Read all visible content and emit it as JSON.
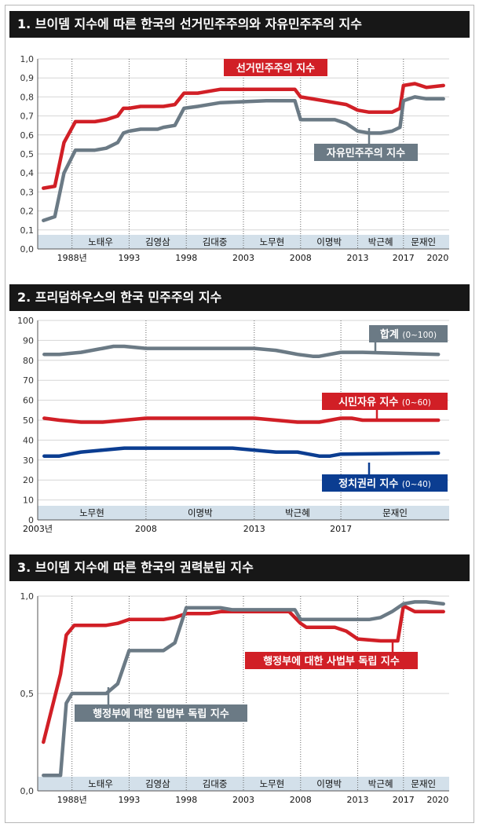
{
  "colors": {
    "red": "#d11f26",
    "gray": "#6b7a85",
    "blue": "#0b3d91",
    "band": "#d3e0ea",
    "title_bg": "#171717"
  },
  "chart_data": [
    {
      "type": "line",
      "title": "1. 브이뎀 지수에 따른 한국의 선거민주주의와 자유민주주의 지수",
      "ylim": [
        0,
        1.0
      ],
      "y_ticks": [
        "0,0",
        "0,1",
        "0,2",
        "0,3",
        "0,4",
        "0,5",
        "0,6",
        "0,7",
        "0,8",
        "0,9",
        "1,0"
      ],
      "x_range": [
        1985,
        2021
      ],
      "x_ticks": [
        {
          "label": "1988년",
          "year": 1988
        },
        {
          "label": "1993",
          "year": 1993
        },
        {
          "label": "1998",
          "year": 1998
        },
        {
          "label": "2003",
          "year": 2003
        },
        {
          "label": "2008",
          "year": 2008
        },
        {
          "label": "2013",
          "year": 2013
        },
        {
          "label": "2017",
          "year": 2017
        },
        {
          "label": "2020",
          "year": 2020
        }
      ],
      "eras": [
        {
          "name": "노태우",
          "start": 1988,
          "end": 1993
        },
        {
          "name": "김영삼",
          "start": 1993,
          "end": 1998
        },
        {
          "name": "김대중",
          "start": 1998,
          "end": 2003
        },
        {
          "name": "노무현",
          "start": 2003,
          "end": 2008
        },
        {
          "name": "이명박",
          "start": 2008,
          "end": 2013
        },
        {
          "name": "박근혜",
          "start": 2013,
          "end": 2017
        },
        {
          "name": "문재인",
          "start": 2017,
          "end": 2020.5
        }
      ],
      "series": [
        {
          "name": "선거민주주의 지수",
          "color": "red",
          "x": [
            1985.5,
            1986.5,
            1987.3,
            1988.3,
            1990,
            1991,
            1992,
            1992.5,
            1993,
            1994,
            1995.5,
            1996,
            1997,
            1997.8,
            1999,
            2001,
            2005,
            2007.5,
            2008,
            2010,
            2011,
            2012,
            2013,
            2014,
            2015,
            2016,
            2016.7,
            2017,
            2018,
            2019,
            2020.5
          ],
          "values": [
            0.32,
            0.33,
            0.56,
            0.67,
            0.67,
            0.68,
            0.7,
            0.74,
            0.74,
            0.75,
            0.75,
            0.75,
            0.76,
            0.82,
            0.82,
            0.84,
            0.84,
            0.84,
            0.8,
            0.78,
            0.77,
            0.76,
            0.73,
            0.72,
            0.72,
            0.72,
            0.74,
            0.86,
            0.87,
            0.85,
            0.86
          ]
        },
        {
          "name": "자유민주주의 지수",
          "color": "gray",
          "x": [
            1985.5,
            1986.5,
            1987.3,
            1988.3,
            1990,
            1991,
            1992,
            1992.5,
            1993,
            1994,
            1995.5,
            1996,
            1997,
            1997.8,
            1999,
            2001,
            2005,
            2007.5,
            2008,
            2010,
            2011,
            2012,
            2013,
            2014,
            2015,
            2016,
            2016.7,
            2017,
            2018,
            2019,
            2020.5
          ],
          "values": [
            0.15,
            0.17,
            0.4,
            0.52,
            0.52,
            0.53,
            0.56,
            0.61,
            0.62,
            0.63,
            0.63,
            0.64,
            0.65,
            0.74,
            0.75,
            0.77,
            0.78,
            0.78,
            0.68,
            0.68,
            0.68,
            0.66,
            0.62,
            0.61,
            0.61,
            0.62,
            0.64,
            0.78,
            0.8,
            0.79,
            0.79
          ]
        }
      ],
      "annotations": [
        "선거민주주의 지수",
        "자유민주주의 지수"
      ]
    },
    {
      "type": "line",
      "title": "2. 프리덤하우스의 한국 민주주의 지수",
      "ylim": [
        0,
        100
      ],
      "y_ticks": [
        "0",
        "10",
        "20",
        "30",
        "40",
        "50",
        "60",
        "70",
        "80",
        "90",
        "100"
      ],
      "x_range": [
        2003,
        2022
      ],
      "x_ticks": [
        {
          "label": "2003년",
          "year": 2003
        },
        {
          "label": "2008",
          "year": 2008
        },
        {
          "label": "2013",
          "year": 2013
        },
        {
          "label": "2017",
          "year": 2017
        }
      ],
      "eras": [
        {
          "name": "노무현",
          "start": 2003,
          "end": 2008
        },
        {
          "name": "이명박",
          "start": 2008,
          "end": 2013
        },
        {
          "name": "박근혜",
          "start": 2013,
          "end": 2017
        },
        {
          "name": "문재인",
          "start": 2017,
          "end": 2022
        }
      ],
      "series": [
        {
          "name": "합계",
          "color": "gray",
          "x": [
            2003.3,
            2004,
            2005,
            2006,
            2006.5,
            2007,
            2008,
            2011,
            2012,
            2013,
            2014,
            2014.5,
            2015,
            2015.7,
            2016,
            2017,
            2018,
            2021.5
          ],
          "values": [
            83,
            83,
            84,
            86,
            87,
            87,
            86,
            86,
            86,
            86,
            85,
            84,
            83,
            82,
            82,
            84,
            84,
            83
          ]
        },
        {
          "name": "시민자유 지수",
          "color": "red",
          "x": [
            2003.3,
            2004,
            2005,
            2006,
            2007,
            2008,
            2012,
            2013,
            2014,
            2015,
            2016,
            2016.5,
            2017,
            2017.5,
            2018,
            2021.5
          ],
          "values": [
            51,
            50,
            49,
            49,
            50,
            51,
            51,
            51,
            50,
            49,
            49,
            50,
            51,
            51,
            50,
            50
          ]
        },
        {
          "name": "정치권리 지수",
          "color": "blue",
          "x": [
            2003.3,
            2004,
            2005,
            2006,
            2007,
            2008,
            2012,
            2013,
            2014,
            2015,
            2016,
            2016.5,
            2017,
            2021.5
          ],
          "values": [
            32,
            32,
            34,
            35,
            36,
            36,
            36,
            35,
            34,
            34,
            32,
            32,
            33,
            33.5
          ]
        }
      ],
      "legend": [
        {
          "label": "합계",
          "range": "(0~100)"
        },
        {
          "label": "시민자유 지수",
          "range": "(0~60)"
        },
        {
          "label": "정치권리 지수",
          "range": "(0~40)"
        }
      ]
    },
    {
      "type": "line",
      "title": "3. 브이뎀 지수에 따른 한국의 권력분립 지수",
      "ylim": [
        0,
        1.0
      ],
      "y_ticks": [
        "0,0",
        "0,5",
        "1,0"
      ],
      "x_range": [
        1985,
        2021
      ],
      "x_ticks": [
        {
          "label": "1988년",
          "year": 1988
        },
        {
          "label": "1993",
          "year": 1993
        },
        {
          "label": "1998",
          "year": 1998
        },
        {
          "label": "2003",
          "year": 2003
        },
        {
          "label": "2008",
          "year": 2008
        },
        {
          "label": "2013",
          "year": 2013
        },
        {
          "label": "2017",
          "year": 2017
        },
        {
          "label": "2020",
          "year": 2020
        }
      ],
      "eras": [
        {
          "name": "노태우",
          "start": 1988,
          "end": 1993
        },
        {
          "name": "김영삼",
          "start": 1993,
          "end": 1998
        },
        {
          "name": "김대중",
          "start": 1998,
          "end": 2003
        },
        {
          "name": "노무현",
          "start": 2003,
          "end": 2008
        },
        {
          "name": "이명박",
          "start": 2008,
          "end": 2013
        },
        {
          "name": "박근혜",
          "start": 2013,
          "end": 2017
        },
        {
          "name": "문재인",
          "start": 2017,
          "end": 2020.5
        }
      ],
      "series": [
        {
          "name": "행정부에 대한 사법부 독립 지수",
          "color": "red",
          "x": [
            1985.5,
            1987,
            1987.5,
            1988.2,
            1991,
            1992,
            1993,
            1995,
            1996,
            1997,
            1998,
            2000,
            2001,
            2002.5,
            2003,
            2007,
            2008,
            2008.5,
            2010,
            2011,
            2012,
            2013,
            2015,
            2016,
            2016.5,
            2017,
            2018,
            2020.5
          ],
          "values": [
            0.25,
            0.6,
            0.8,
            0.85,
            0.85,
            0.86,
            0.88,
            0.88,
            0.88,
            0.89,
            0.91,
            0.91,
            0.92,
            0.92,
            0.92,
            0.92,
            0.86,
            0.84,
            0.84,
            0.84,
            0.82,
            0.78,
            0.77,
            0.77,
            0.77,
            0.95,
            0.92,
            0.92
          ]
        },
        {
          "name": "행정부에 대한 입법부 독립 지수",
          "color": "gray",
          "x": [
            1985.5,
            1987,
            1987.5,
            1988,
            1990,
            1991,
            1992,
            1993,
            1995,
            1996,
            1997,
            1998,
            2001,
            2002,
            2007,
            2007.5,
            2008,
            2010,
            2013,
            2014,
            2015,
            2016,
            2017,
            2018,
            2019,
            2020.5
          ],
          "values": [
            0.08,
            0.08,
            0.45,
            0.5,
            0.5,
            0.5,
            0.55,
            0.72,
            0.72,
            0.72,
            0.76,
            0.94,
            0.94,
            0.93,
            0.93,
            0.93,
            0.88,
            0.88,
            0.88,
            0.88,
            0.89,
            0.92,
            0.96,
            0.97,
            0.97,
            0.96
          ]
        }
      ],
      "annotations": [
        "행정부에 대한 사법부 독립 지수",
        "행정부에 대한 입법부 독립 지수"
      ]
    }
  ]
}
